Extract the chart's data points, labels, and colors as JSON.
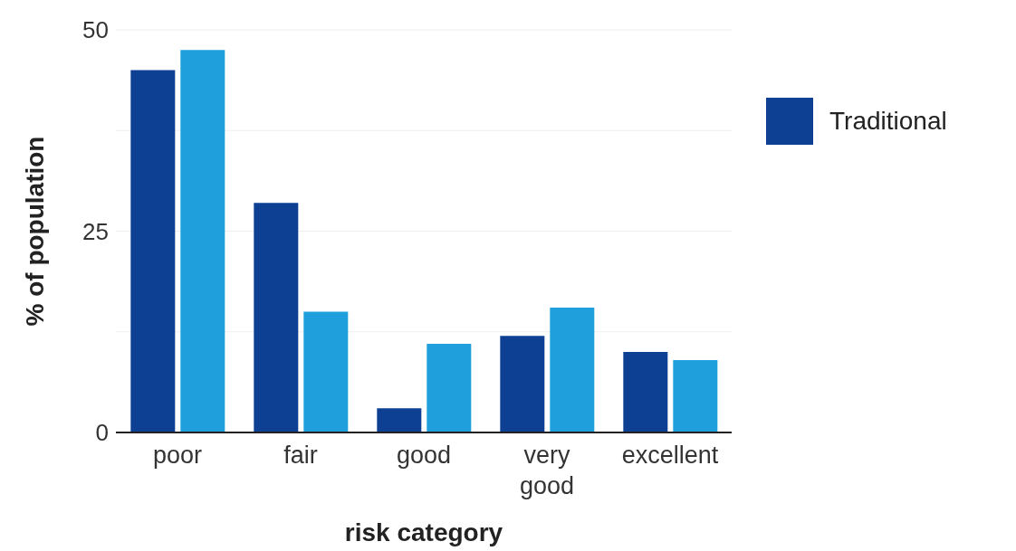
{
  "chart_data": {
    "type": "bar",
    "xlabel": "risk category",
    "ylabel": "% of population",
    "categories": [
      "poor",
      "fair",
      "good",
      "very good",
      "excellent"
    ],
    "series": [
      {
        "name": "Traditional",
        "color": "#0d3f93",
        "values": [
          45,
          28.5,
          3,
          12,
          10
        ]
      },
      {
        "color": "#1fa0dc",
        "values": [
          47.5,
          15,
          11,
          15.5,
          9
        ]
      }
    ],
    "ylim": [
      0,
      50
    ],
    "yticks": [
      0,
      {
        "value": 12.5,
        "label": null
      },
      25,
      {
        "value": 37.5,
        "label": null
      },
      50
    ],
    "grid": "y",
    "legend": "right"
  }
}
